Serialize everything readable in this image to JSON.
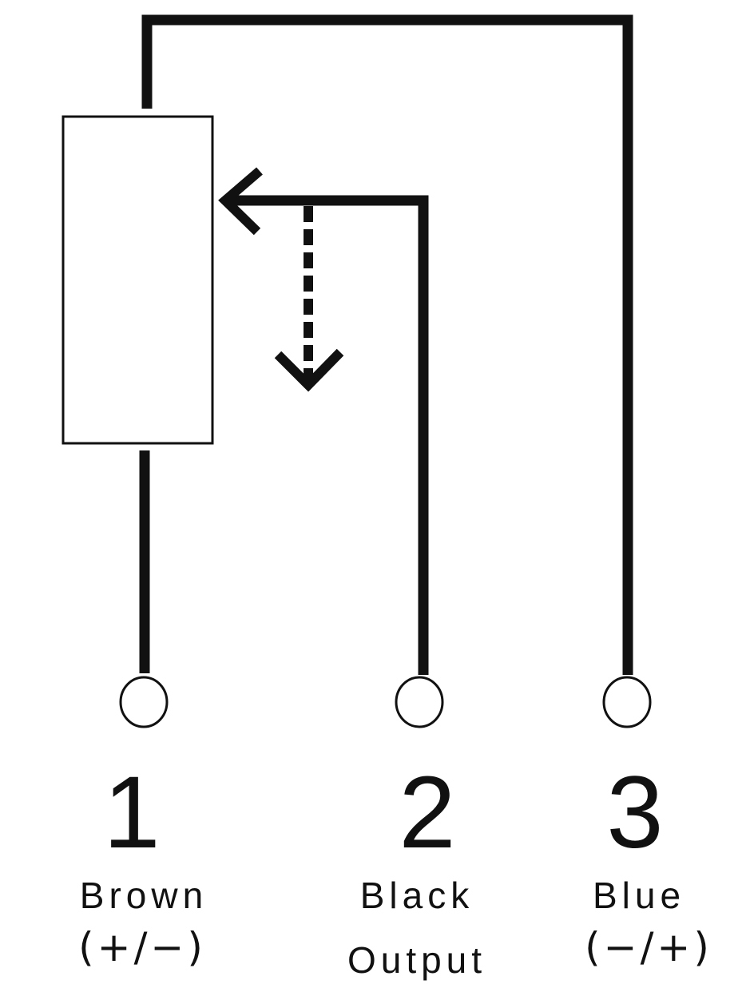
{
  "colors": {
    "line": "#111111",
    "background": "#ffffff"
  },
  "pins": [
    {
      "number": "1",
      "color_label": "Brown",
      "role": "(+∕−)"
    },
    {
      "number": "2",
      "color_label": "Black",
      "role": "Output"
    },
    {
      "number": "3",
      "color_label": "Blue",
      "role": "(−∕+)"
    }
  ]
}
